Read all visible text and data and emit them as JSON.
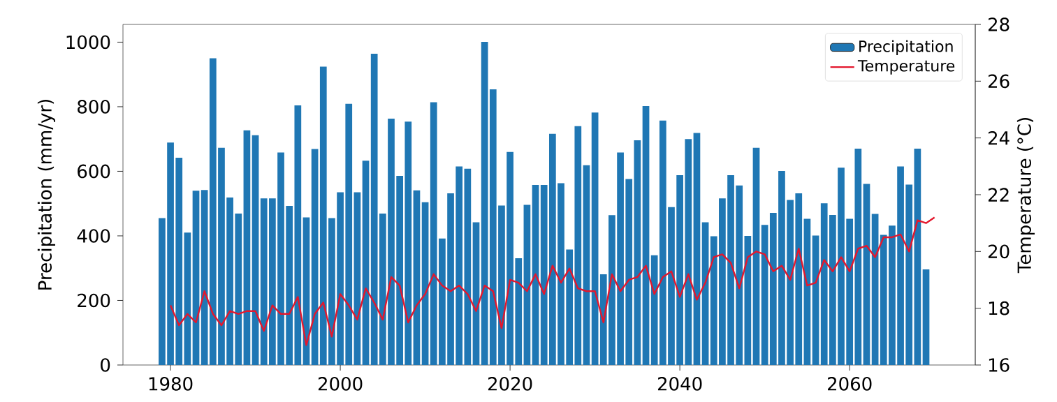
{
  "chart_data": {
    "type": "bar",
    "ylabel": "Precipitation (mm/yr)",
    "y2label": "Temperature (°C)",
    "xlim": [
      1974.4,
      2074.8
    ],
    "xticks": [
      1980,
      2000,
      2020,
      2040,
      2060
    ],
    "ylim": [
      0,
      1055
    ],
    "yticks": [
      0,
      200,
      400,
      600,
      800,
      1000
    ],
    "y2lim": [
      16,
      28
    ],
    "y2ticks": [
      16,
      18,
      20,
      22,
      24,
      26,
      28
    ],
    "legend": "top right",
    "series": [
      {
        "name": "Precipitation",
        "color": "#1f77b4",
        "x": [
          1979,
          1980,
          1981,
          1982,
          1983,
          1984,
          1985,
          1986,
          1987,
          1988,
          1989,
          1990,
          1991,
          1992,
          1993,
          1994,
          1995,
          1996,
          1997,
          1998,
          1999,
          2000,
          2001,
          2002,
          2003,
          2004,
          2005,
          2006,
          2007,
          2008,
          2009,
          2010,
          2011,
          2012,
          2013,
          2014,
          2015,
          2016,
          2017,
          2018,
          2019,
          2020,
          2021,
          2022,
          2023,
          2024,
          2025,
          2026,
          2027,
          2028,
          2029,
          2030,
          2031,
          2032,
          2033,
          2034,
          2035,
          2036,
          2037,
          2038,
          2039,
          2040,
          2041,
          2042,
          2043,
          2044,
          2045,
          2046,
          2047,
          2048,
          2049,
          2050,
          2051,
          2052,
          2053,
          2054,
          2055,
          2056,
          2057,
          2058,
          2059,
          2060,
          2061,
          2062,
          2063,
          2064,
          2065,
          2066,
          2067,
          2068,
          2069
        ],
        "values": [
          455,
          689,
          642,
          410,
          540,
          542,
          950,
          673,
          519,
          469,
          727,
          712,
          516,
          516,
          658,
          493,
          804,
          457,
          669,
          924,
          455,
          535,
          809,
          535,
          633,
          964,
          469,
          763,
          586,
          754,
          541,
          504,
          814,
          392,
          532,
          615,
          608,
          442,
          1001,
          854,
          494,
          660,
          331,
          496,
          558,
          558,
          716,
          563,
          358,
          740,
          619,
          782,
          281,
          464,
          658,
          576,
          696,
          802,
          340,
          757,
          489,
          588,
          700,
          719,
          442,
          399,
          516,
          588,
          556,
          400,
          673,
          434,
          471,
          601,
          511,
          532,
          453,
          401,
          501,
          465,
          611,
          453,
          670,
          561,
          468,
          403,
          432,
          615,
          559,
          670,
          296
        ]
      },
      {
        "name": "Temperature",
        "type": "line",
        "axis": "y2",
        "color": "#e3172d",
        "x": [
          1980,
          1981,
          1982,
          1983,
          1984,
          1985,
          1986,
          1987,
          1988,
          1989,
          1990,
          1991,
          1992,
          1993,
          1994,
          1995,
          1996,
          1997,
          1998,
          1999,
          2000,
          2001,
          2002,
          2003,
          2004,
          2005,
          2006,
          2007,
          2008,
          2009,
          2010,
          2011,
          2012,
          2013,
          2014,
          2015,
          2016,
          2017,
          2018,
          2019,
          2020,
          2021,
          2022,
          2023,
          2024,
          2025,
          2026,
          2027,
          2028,
          2029,
          2030,
          2031,
          2032,
          2033,
          2034,
          2035,
          2036,
          2037,
          2038,
          2039,
          2040,
          2041,
          2042,
          2043,
          2044,
          2045,
          2046,
          2047,
          2048,
          2049,
          2050,
          2051,
          2052,
          2053,
          2054,
          2055,
          2056,
          2057,
          2058,
          2059,
          2060,
          2061,
          2062,
          2063,
          2064,
          2065,
          2066,
          2067,
          2068,
          2069,
          2070
        ],
        "values": [
          18.1,
          17.4,
          17.8,
          17.5,
          18.6,
          17.8,
          17.4,
          17.9,
          17.8,
          17.9,
          17.9,
          17.2,
          18.1,
          17.8,
          17.8,
          18.4,
          16.7,
          17.8,
          18.2,
          17.0,
          18.5,
          18.1,
          17.6,
          18.7,
          18.2,
          17.6,
          19.1,
          18.8,
          17.5,
          18.1,
          18.5,
          19.2,
          18.8,
          18.6,
          18.8,
          18.5,
          17.9,
          18.8,
          18.6,
          17.3,
          19.0,
          18.9,
          18.6,
          19.2,
          18.5,
          19.5,
          18.9,
          19.4,
          18.7,
          18.6,
          18.6,
          17.5,
          19.2,
          18.6,
          19.0,
          19.1,
          19.5,
          18.5,
          19.1,
          19.3,
          18.4,
          19.2,
          18.3,
          18.9,
          19.8,
          19.9,
          19.6,
          18.7,
          19.8,
          20.0,
          19.9,
          19.3,
          19.5,
          19.0,
          20.1,
          18.8,
          18.9,
          19.7,
          19.3,
          19.8,
          19.3,
          20.1,
          20.2,
          19.8,
          20.5,
          20.5,
          20.6,
          20.0,
          21.1,
          21.0,
          21.2
        ]
      }
    ]
  }
}
